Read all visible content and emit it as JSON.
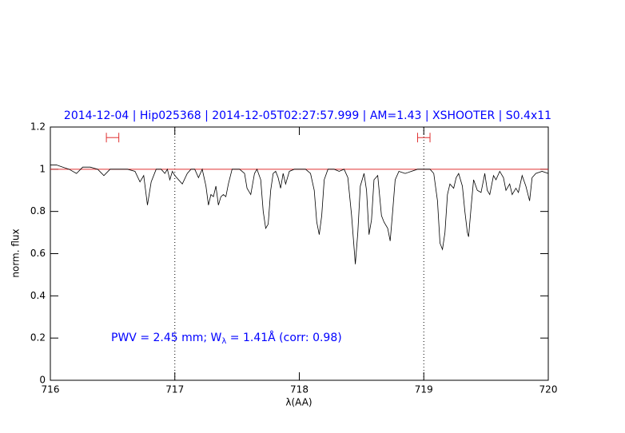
{
  "chart_data": {
    "type": "line",
    "title": "2014-12-04 | Hip025368 | 2014-12-05T02:27:57.999 | AM=1.43 | XSHOOTER | S0.4x11",
    "xlabel": "λ(AA)",
    "ylabel": "norm. flux",
    "annotation": [
      "PWV = 2.45 mm; W",
      "λ",
      " = 1.41Å (corr: 0.98)"
    ],
    "xlim": [
      716,
      720
    ],
    "ylim": [
      0,
      1.2
    ],
    "xticks": [
      716,
      717,
      718,
      719,
      720
    ],
    "yticks": [
      0,
      0.2,
      0.4,
      0.6,
      0.8,
      1,
      1.2
    ],
    "reference_line": {
      "y": 1,
      "color": "#e03030"
    },
    "vlines": [
      717,
      719
    ],
    "markers": [
      {
        "x": [
          716.45,
          716.55
        ],
        "y": 1.15,
        "color": "#e03030"
      },
      {
        "x": [
          718.95,
          719.05
        ],
        "y": 1.15,
        "color": "#e03030"
      }
    ],
    "series": [
      {
        "color": "#000000",
        "x": [
          716.0,
          716.05,
          716.1,
          716.15,
          716.21,
          716.26,
          716.32,
          716.38,
          716.43,
          716.48,
          716.55,
          716.62,
          716.68,
          716.72,
          716.75,
          716.78,
          716.81,
          716.85,
          716.89,
          716.92,
          716.94,
          716.96,
          716.98,
          717.0,
          717.06,
          717.1,
          717.13,
          717.16,
          717.19,
          717.22,
          717.25,
          717.27,
          717.29,
          717.31,
          717.33,
          717.35,
          717.37,
          717.39,
          717.41,
          717.43,
          717.46,
          717.52,
          717.56,
          717.58,
          717.61,
          717.64,
          717.66,
          717.69,
          717.71,
          717.73,
          717.75,
          717.77,
          717.79,
          717.81,
          717.83,
          717.85,
          717.87,
          717.89,
          717.92,
          717.96,
          718.0,
          718.05,
          718.09,
          718.12,
          718.14,
          718.16,
          718.18,
          718.2,
          718.23,
          718.28,
          718.32,
          718.36,
          718.39,
          718.42,
          718.45,
          718.47,
          718.49,
          718.52,
          718.54,
          718.56,
          718.58,
          718.6,
          718.63,
          718.66,
          718.68,
          718.71,
          718.73,
          718.75,
          718.77,
          718.8,
          718.85,
          718.9,
          718.95,
          719.0,
          719.05,
          719.08,
          719.11,
          719.13,
          719.15,
          719.17,
          719.19,
          719.21,
          719.24,
          719.26,
          719.28,
          719.31,
          719.33,
          719.35,
          719.36,
          719.38,
          719.4,
          719.43,
          719.46,
          719.49,
          719.51,
          719.53,
          719.56,
          719.58,
          719.61,
          719.64,
          719.66,
          719.69,
          719.71,
          719.74,
          719.76,
          719.79,
          719.82,
          719.85,
          719.87,
          719.9,
          719.95,
          720.0
        ],
        "values": [
          1.02,
          1.02,
          1.01,
          1.0,
          0.98,
          1.01,
          1.01,
          1.0,
          0.97,
          1.0,
          1.0,
          1.0,
          0.99,
          0.94,
          0.97,
          0.83,
          0.94,
          1.0,
          1.0,
          0.98,
          1.0,
          0.95,
          0.99,
          0.97,
          0.93,
          0.98,
          1.0,
          1.0,
          0.96,
          1.0,
          0.92,
          0.83,
          0.88,
          0.87,
          0.92,
          0.83,
          0.87,
          0.88,
          0.87,
          0.93,
          1.0,
          1.0,
          0.98,
          0.91,
          0.88,
          0.98,
          1.0,
          0.95,
          0.8,
          0.72,
          0.74,
          0.9,
          0.98,
          0.99,
          0.96,
          0.91,
          0.98,
          0.93,
          0.99,
          1.0,
          1.0,
          1.0,
          0.98,
          0.9,
          0.75,
          0.69,
          0.78,
          0.95,
          1.0,
          1.0,
          0.99,
          1.0,
          0.96,
          0.78,
          0.55,
          0.7,
          0.92,
          0.98,
          0.9,
          0.69,
          0.76,
          0.95,
          0.97,
          0.78,
          0.75,
          0.72,
          0.66,
          0.8,
          0.95,
          0.99,
          0.98,
          0.99,
          1.0,
          1.0,
          1.0,
          0.98,
          0.85,
          0.65,
          0.62,
          0.7,
          0.88,
          0.93,
          0.91,
          0.96,
          0.98,
          0.92,
          0.8,
          0.7,
          0.68,
          0.82,
          0.95,
          0.9,
          0.89,
          0.98,
          0.9,
          0.88,
          0.97,
          0.95,
          0.99,
          0.96,
          0.9,
          0.93,
          0.88,
          0.91,
          0.89,
          0.97,
          0.92,
          0.85,
          0.96,
          0.98,
          0.99,
          0.98
        ]
      }
    ]
  }
}
